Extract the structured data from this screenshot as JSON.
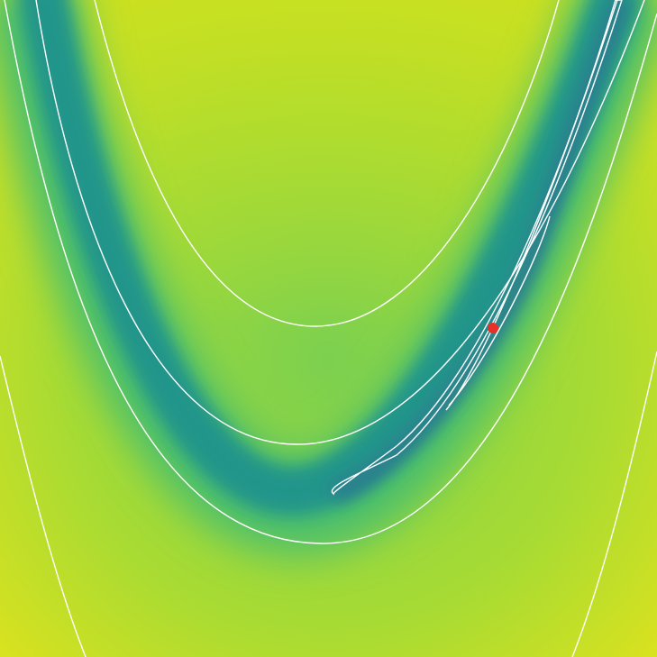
{
  "marker": {
    "color": "#e8302a"
  }
}
